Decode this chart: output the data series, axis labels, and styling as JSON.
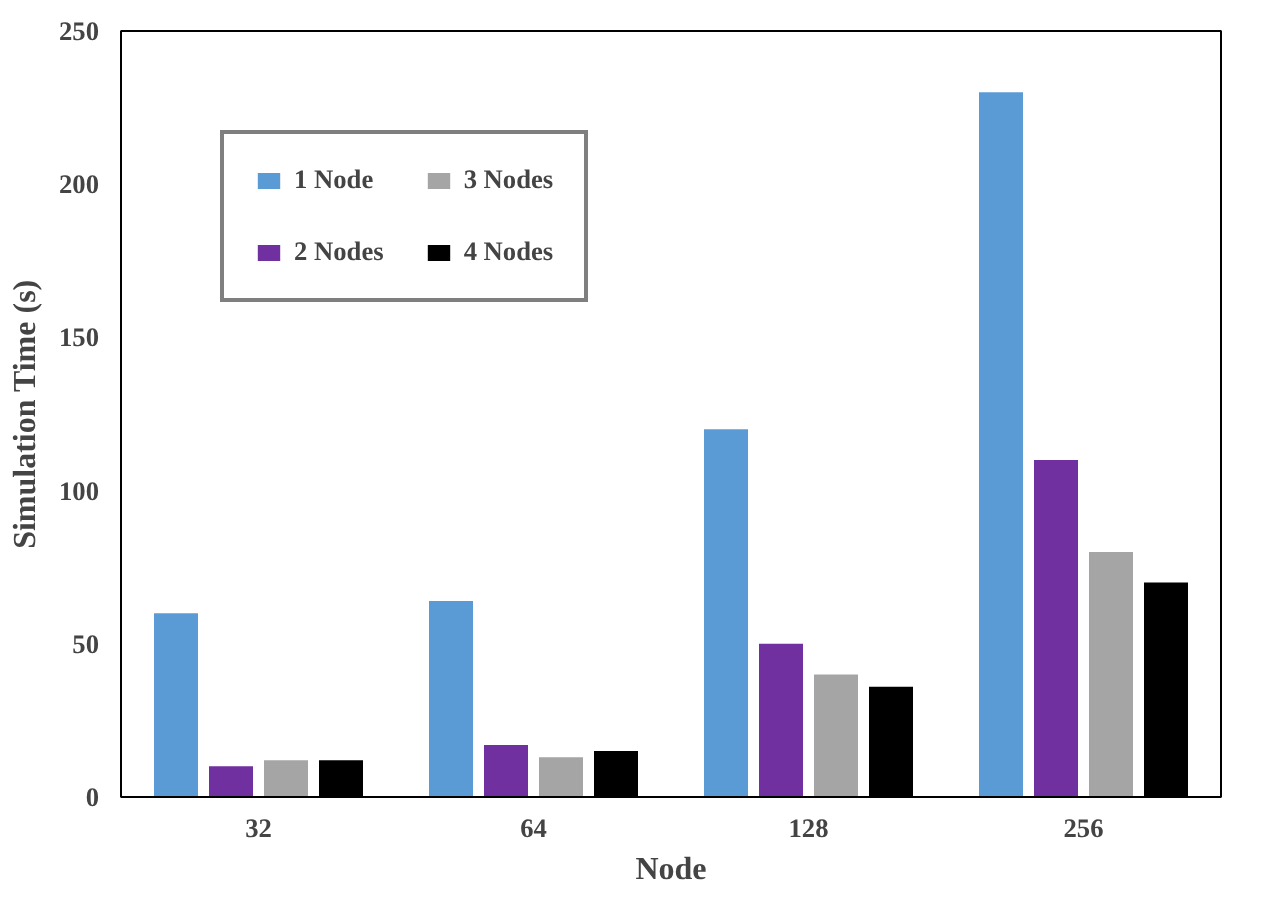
{
  "chart_data": {
    "type": "bar",
    "xlabel": "Node",
    "ylabel": "Simulation Time (s)",
    "categories": [
      "32",
      "64",
      "128",
      "256"
    ],
    "series": [
      {
        "name": "1 Node",
        "color": "#5b9bd5",
        "values": [
          60,
          64,
          120,
          230
        ]
      },
      {
        "name": "2 Nodes",
        "color": "#7030a0",
        "values": [
          10,
          17,
          50,
          110
        ]
      },
      {
        "name": "3 Nodes",
        "color": "#a5a5a5",
        "values": [
          12,
          13,
          40,
          80
        ]
      },
      {
        "name": "4 Nodes",
        "color": "#000000",
        "values": [
          12,
          15,
          36,
          70
        ]
      }
    ],
    "ylim": [
      0,
      250
    ],
    "yticks": [
      0,
      50,
      100,
      150,
      200,
      250
    ],
    "grid": false,
    "legend": "top left"
  }
}
